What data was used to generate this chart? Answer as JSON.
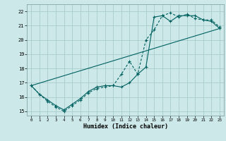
{
  "xlabel": "Humidex (Indice chaleur)",
  "bg_color": "#cce8e8",
  "grid_color": "#aacccc",
  "line_color": "#006060",
  "xlim": [
    -0.5,
    23.5
  ],
  "ylim": [
    14.7,
    22.5
  ],
  "xticks": [
    0,
    1,
    2,
    3,
    4,
    5,
    6,
    7,
    8,
    9,
    10,
    11,
    12,
    13,
    14,
    15,
    16,
    17,
    18,
    19,
    20,
    21,
    22,
    23
  ],
  "yticks": [
    15,
    16,
    17,
    18,
    19,
    20,
    21,
    22
  ],
  "line1_x": [
    0,
    1,
    2,
    3,
    4,
    5,
    6,
    7,
    8,
    9,
    10,
    11,
    12,
    13,
    14,
    15,
    16,
    17,
    18,
    19,
    20,
    21,
    22,
    23
  ],
  "line1_y": [
    16.8,
    16.2,
    15.7,
    15.3,
    15.0,
    15.4,
    15.8,
    16.3,
    16.6,
    16.7,
    16.8,
    17.6,
    18.5,
    17.6,
    20.0,
    20.7,
    21.7,
    21.9,
    21.6,
    21.8,
    21.5,
    21.4,
    21.4,
    20.9
  ],
  "line2_x": [
    0,
    1,
    2,
    3,
    4,
    5,
    6,
    7,
    8,
    9,
    10,
    11,
    12,
    13,
    14,
    15,
    16,
    17,
    18,
    19,
    20,
    21,
    22,
    23
  ],
  "line2_y": [
    16.8,
    16.2,
    15.8,
    15.4,
    15.1,
    15.5,
    15.9,
    16.4,
    16.7,
    16.8,
    16.8,
    16.7,
    17.0,
    17.6,
    18.1,
    21.6,
    21.7,
    21.3,
    21.7,
    21.7,
    21.7,
    21.4,
    21.3,
    20.8
  ],
  "line3_x": [
    0,
    23
  ],
  "line3_y": [
    16.8,
    20.8
  ]
}
